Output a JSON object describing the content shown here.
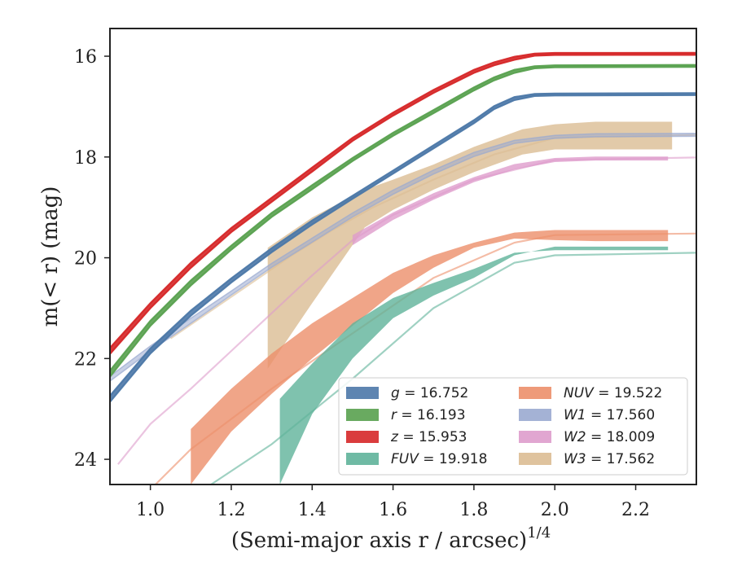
{
  "chart_data": {
    "type": "line",
    "xlabel": "(Semi-major axis r / arcsec)",
    "xlabel_sup": "1/4",
    "ylabel": "m(< r) (mag)",
    "xlim": [
      0.9,
      2.35
    ],
    "ylim": [
      24.5,
      15.45
    ],
    "y_inverted": true,
    "xticks": [
      1.0,
      1.2,
      1.4,
      1.6,
      1.8,
      2.0,
      2.2
    ],
    "xtick_labels": [
      "1.0",
      "1.2",
      "1.4",
      "1.6",
      "1.8",
      "2.0",
      "2.2"
    ],
    "yticks": [
      16,
      18,
      20,
      22,
      24
    ],
    "ytick_labels": [
      "16",
      "18",
      "20",
      "22",
      "24"
    ],
    "grid": false,
    "legend_position": "lower-right",
    "series": [
      {
        "name": "g = 16.752",
        "label_var": "g",
        "label_val": "= 16.752",
        "color": "#4c78a8",
        "kind": "line",
        "x": [
          0.9,
          1.0,
          1.1,
          1.2,
          1.3,
          1.4,
          1.5,
          1.6,
          1.7,
          1.8,
          1.85,
          1.9,
          1.95,
          2.0,
          2.35
        ],
        "y": [
          22.8,
          21.85,
          21.1,
          20.45,
          19.85,
          19.3,
          18.8,
          18.3,
          17.8,
          17.3,
          17.02,
          16.84,
          16.77,
          16.76,
          16.752
        ],
        "width": [
          0.06,
          0.05,
          0.05,
          0.04,
          0.04,
          0.04,
          0.03,
          0.03,
          0.03,
          0.03,
          0.03,
          0.03,
          0.02,
          0.02,
          0.02
        ]
      },
      {
        "name": "r = 16.193",
        "label_var": "r",
        "label_val": "= 16.193",
        "color": "#59a14f",
        "kind": "line",
        "x": [
          0.9,
          1.0,
          1.1,
          1.2,
          1.3,
          1.4,
          1.5,
          1.6,
          1.7,
          1.8,
          1.85,
          1.9,
          1.95,
          2.0,
          2.35
        ],
        "y": [
          22.3,
          21.3,
          20.5,
          19.8,
          19.15,
          18.6,
          18.05,
          17.55,
          17.1,
          16.65,
          16.45,
          16.3,
          16.22,
          16.2,
          16.193
        ],
        "width": [
          0.06,
          0.05,
          0.05,
          0.04,
          0.04,
          0.04,
          0.03,
          0.03,
          0.03,
          0.03,
          0.03,
          0.03,
          0.02,
          0.02,
          0.02
        ]
      },
      {
        "name": "z = 15.953",
        "label_var": "z",
        "label_val": "= 15.953",
        "color": "#d62728",
        "kind": "line",
        "x": [
          0.9,
          1.0,
          1.1,
          1.2,
          1.3,
          1.4,
          1.5,
          1.6,
          1.7,
          1.8,
          1.85,
          1.9,
          1.95,
          2.0,
          2.35
        ],
        "y": [
          21.85,
          20.95,
          20.15,
          19.45,
          18.85,
          18.25,
          17.65,
          17.15,
          16.7,
          16.3,
          16.15,
          16.04,
          15.97,
          15.955,
          15.953
        ],
        "width": [
          0.06,
          0.05,
          0.05,
          0.04,
          0.04,
          0.04,
          0.03,
          0.03,
          0.03,
          0.03,
          0.03,
          0.03,
          0.02,
          0.02,
          0.02
        ]
      },
      {
        "name": "FUV = 19.918",
        "label_var": "FUV",
        "label_val": "= 19.918",
        "color": "#5fb39a",
        "kind": "band",
        "x": [
          1.32,
          1.4,
          1.5,
          1.6,
          1.7,
          1.8,
          1.9,
          2.0,
          2.1,
          2.28
        ],
        "y_low": [
          24.5,
          23.1,
          22.0,
          21.2,
          20.75,
          20.4,
          19.95,
          19.78,
          19.78,
          19.78
        ],
        "y_high": [
          22.8,
          22.1,
          21.3,
          20.8,
          20.5,
          20.22,
          19.9,
          19.85,
          19.85,
          19.85
        ],
        "fit_x": [
          1.15,
          1.3,
          1.5,
          1.7,
          1.9,
          2.0,
          2.35
        ],
        "fit_y": [
          24.5,
          23.7,
          22.4,
          21.0,
          20.1,
          19.95,
          19.9
        ]
      },
      {
        "name": "NUV = 19.522",
        "label_var": "NUV",
        "label_val": "= 19.522",
        "color": "#ec8f6a",
        "kind": "band",
        "x": [
          1.1,
          1.2,
          1.3,
          1.4,
          1.5,
          1.6,
          1.7,
          1.8,
          1.9,
          2.0,
          2.1,
          2.28
        ],
        "y_low": [
          24.5,
          23.45,
          22.7,
          22.0,
          21.35,
          20.7,
          20.2,
          19.8,
          19.62,
          19.65,
          19.67,
          19.67
        ],
        "y_high": [
          23.4,
          22.6,
          21.9,
          21.3,
          20.8,
          20.3,
          19.95,
          19.7,
          19.5,
          19.45,
          19.45,
          19.45
        ],
        "fit_x": [
          1.0,
          1.1,
          1.3,
          1.5,
          1.7,
          1.9,
          2.0,
          2.35
        ],
        "fit_y": [
          24.6,
          23.8,
          22.6,
          21.5,
          20.4,
          19.7,
          19.55,
          19.52
        ]
      },
      {
        "name": "W1 = 17.560",
        "label_var": "W1",
        "label_val": "= 17.560",
        "color": "#9aaad0",
        "kind": "line",
        "x": [
          0.9,
          1.0,
          1.1,
          1.2,
          1.3,
          1.4,
          1.5,
          1.6,
          1.7,
          1.8,
          1.9,
          2.0,
          2.1,
          2.35
        ],
        "y": [
          22.4,
          21.8,
          21.25,
          20.7,
          20.15,
          19.65,
          19.15,
          18.7,
          18.3,
          17.95,
          17.7,
          17.6,
          17.57,
          17.56
        ],
        "width": [
          0.05,
          0.05,
          0.05,
          0.04,
          0.04,
          0.04,
          0.04,
          0.04,
          0.04,
          0.04,
          0.03,
          0.03,
          0.03,
          0.03
        ]
      },
      {
        "name": "W2 = 18.009",
        "label_var": "W2",
        "label_val": "= 18.009",
        "color": "#de9ccc",
        "kind": "band",
        "x": [
          1.5,
          1.6,
          1.7,
          1.8,
          1.9,
          2.0,
          2.1,
          2.28
        ],
        "y_low": [
          19.75,
          19.25,
          18.85,
          18.5,
          18.25,
          18.1,
          18.07,
          18.07
        ],
        "y_high": [
          19.55,
          19.1,
          18.72,
          18.4,
          18.14,
          18.02,
          17.99,
          17.99
        ],
        "fit_x": [
          0.92,
          1.0,
          1.1,
          1.2,
          1.3,
          1.4,
          1.5,
          1.6,
          1.8,
          2.0,
          2.35
        ],
        "fit_y": [
          24.1,
          23.3,
          22.6,
          21.85,
          21.1,
          20.35,
          19.65,
          19.15,
          18.45,
          18.06,
          18.01
        ]
      },
      {
        "name": "W3 = 17.562",
        "label_var": "W3",
        "label_val": "= 17.562",
        "color": "#dbbd93",
        "kind": "band",
        "x": [
          1.29,
          1.4,
          1.53,
          1.6,
          1.7,
          1.8,
          1.92,
          2.0,
          2.1,
          2.29
        ],
        "y_low": [
          22.2,
          20.9,
          19.4,
          19.05,
          18.65,
          18.3,
          17.95,
          17.85,
          17.85,
          17.85
        ],
        "y_high": [
          19.8,
          19.2,
          18.65,
          18.45,
          18.15,
          17.8,
          17.45,
          17.35,
          17.3,
          17.3
        ],
        "fit_x": [
          1.05,
          1.15,
          1.25,
          1.35,
          1.45,
          1.55,
          1.7,
          1.85,
          2.0,
          2.35
        ],
        "fit_y": [
          21.6,
          21.05,
          20.5,
          19.95,
          19.45,
          19.0,
          18.45,
          17.95,
          17.62,
          17.562
        ]
      }
    ],
    "legend_columns": [
      [
        0,
        1,
        2,
        3
      ],
      [
        4,
        5,
        6,
        7
      ]
    ]
  }
}
